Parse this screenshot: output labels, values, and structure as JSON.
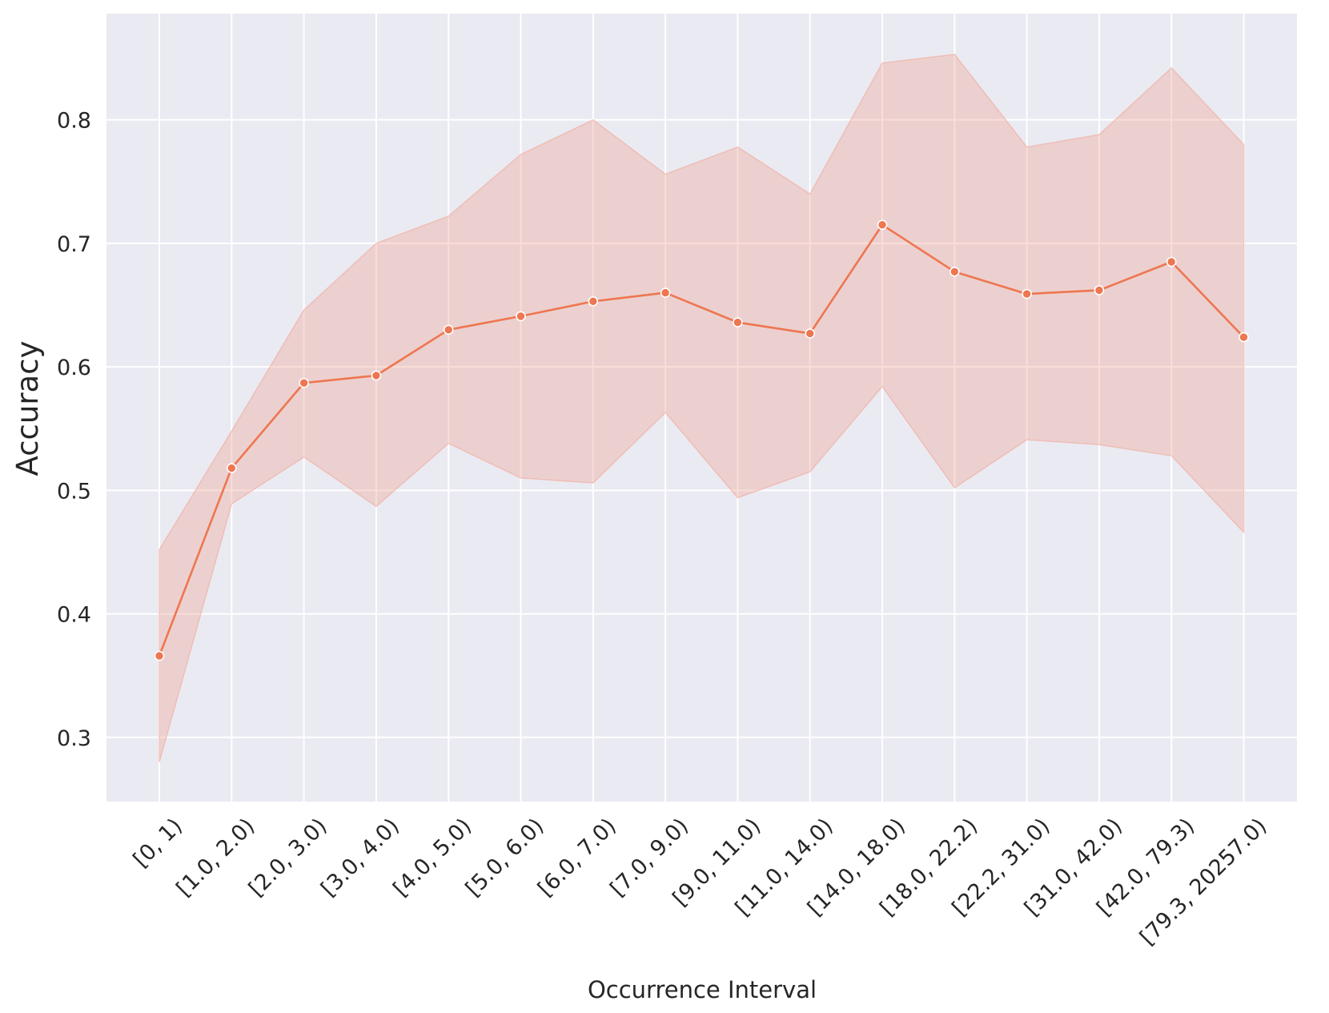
{
  "chart_data": {
    "type": "line",
    "title": "",
    "xlabel": "Occurrence Interval",
    "ylabel": "Accuracy",
    "categories": [
      "[0, 1)",
      "[1.0, 2.0)",
      "[2.0, 3.0)",
      "[3.0, 4.0)",
      "[4.0, 5.0)",
      "[5.0, 6.0)",
      "[6.0, 7.0)",
      "[7.0, 9.0)",
      "[9.0, 11.0)",
      "[11.0, 14.0)",
      "[14.0, 18.0)",
      "[18.0, 22.2)",
      "[22.2, 31.0)",
      "[31.0, 42.0)",
      "[42.0, 79.3)",
      "[79.3, 20257.0)"
    ],
    "series": [
      {
        "values": [
          0.366,
          0.518,
          0.587,
          0.593,
          0.63,
          0.641,
          0.653,
          0.66,
          0.636,
          0.627,
          0.715,
          0.677,
          0.659,
          0.662,
          0.685,
          0.624
        ],
        "ci_upper": [
          0.452,
          0.548,
          0.646,
          0.7,
          0.722,
          0.772,
          0.8,
          0.756,
          0.778,
          0.74,
          0.846,
          0.853,
          0.778,
          0.788,
          0.842,
          0.78
        ],
        "ci_lower": [
          0.28,
          0.489,
          0.527,
          0.487,
          0.538,
          0.51,
          0.506,
          0.563,
          0.494,
          0.515,
          0.584,
          0.502,
          0.541,
          0.537,
          0.528,
          0.466
        ]
      }
    ],
    "yticks": [
      "0.3",
      "0.4",
      "0.5",
      "0.6",
      "0.7",
      "0.8"
    ],
    "ylim": [
      0.248,
      0.886
    ],
    "grid": true,
    "colors": {
      "line": "#ee7650",
      "band": "#f0a696",
      "background": "#eaeaf2",
      "grid": "#ffffff"
    }
  }
}
